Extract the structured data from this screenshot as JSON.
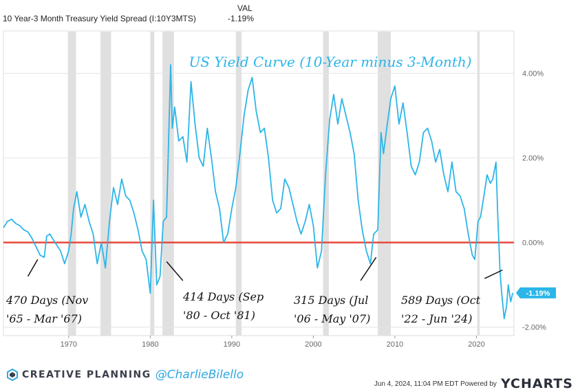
{
  "header": {
    "series_name": "10 Year-3 Month Treasury Yield Spread (I:10Y3MTS)",
    "val_label": "VAL",
    "val": "-1.19%"
  },
  "footer": {
    "brand": "CREATIVE PLANNING",
    "handle": "@CharlieBilello",
    "timestamp": "Jun 4, 2024, 11:04 PM EDT Powered by",
    "ycharts": "YCHARTS"
  },
  "colors": {
    "line": "#2cb5e8",
    "zero_line": "#e8473a",
    "recession": "#e0e0e0",
    "title": "#2cb5e8"
  },
  "chart_data": {
    "type": "line",
    "title": "US Yield Curve (10-Year minus 3-Month)",
    "xlim": [
      1962.0,
      2024.6
    ],
    "ylim": [
      -2.2,
      5.0
    ],
    "x_ticks": [
      1970,
      1980,
      1990,
      2000,
      2010,
      2020
    ],
    "x_tick_labels": [
      "1970",
      "1980",
      "1990",
      "2000",
      "2010",
      "2020"
    ],
    "y_ticks": [
      4,
      2,
      0,
      -2
    ],
    "y_tick_labels": [
      "4.00%",
      "2.00%",
      "0.00%",
      "-2.00%"
    ],
    "current_value": -1.19,
    "current_label": "-1.19%",
    "recessions": [
      [
        1969.9,
        1970.9
      ],
      [
        1973.9,
        1975.2
      ],
      [
        1980.0,
        1980.5
      ],
      [
        1981.5,
        1982.9
      ],
      [
        1990.5,
        1991.2
      ],
      [
        2001.2,
        2001.9
      ],
      [
        2007.9,
        2009.5
      ],
      [
        2020.1,
        2020.4
      ]
    ],
    "series": [
      {
        "values": [
          [
            1962.0,
            0.35
          ],
          [
            1962.5,
            0.5
          ],
          [
            1963.0,
            0.55
          ],
          [
            1963.5,
            0.45
          ],
          [
            1964.0,
            0.4
          ],
          [
            1964.5,
            0.3
          ],
          [
            1965.0,
            0.25
          ],
          [
            1965.5,
            0.1
          ],
          [
            1966.0,
            -0.1
          ],
          [
            1966.5,
            -0.3
          ],
          [
            1967.0,
            -0.35
          ],
          [
            1967.3,
            0.15
          ],
          [
            1967.7,
            0.2
          ],
          [
            1968.0,
            0.1
          ],
          [
            1968.5,
            -0.05
          ],
          [
            1969.0,
            -0.2
          ],
          [
            1969.5,
            -0.5
          ],
          [
            1970.0,
            -0.2
          ],
          [
            1970.3,
            0.2
          ],
          [
            1970.6,
            0.8
          ],
          [
            1971.0,
            1.2
          ],
          [
            1971.5,
            0.6
          ],
          [
            1972.0,
            0.9
          ],
          [
            1972.5,
            0.5
          ],
          [
            1973.0,
            0.2
          ],
          [
            1973.5,
            -0.5
          ],
          [
            1974.0,
            0.0
          ],
          [
            1974.5,
            -0.6
          ],
          [
            1975.0,
            0.5
          ],
          [
            1975.5,
            1.3
          ],
          [
            1976.0,
            0.9
          ],
          [
            1976.5,
            1.5
          ],
          [
            1977.0,
            1.1
          ],
          [
            1977.5,
            1.0
          ],
          [
            1978.0,
            0.7
          ],
          [
            1978.5,
            0.3
          ],
          [
            1979.0,
            -0.2
          ],
          [
            1979.5,
            -0.4
          ],
          [
            1980.0,
            -1.2
          ],
          [
            1980.4,
            1.0
          ],
          [
            1980.8,
            -1.0
          ],
          [
            1981.2,
            -0.8
          ],
          [
            1981.6,
            0.5
          ],
          [
            1982.0,
            0.6
          ],
          [
            1982.5,
            4.2
          ],
          [
            1982.7,
            2.7
          ],
          [
            1983.0,
            3.2
          ],
          [
            1983.5,
            2.4
          ],
          [
            1984.0,
            2.5
          ],
          [
            1984.5,
            1.9
          ],
          [
            1985.0,
            3.8
          ],
          [
            1985.5,
            2.8
          ],
          [
            1986.0,
            2.0
          ],
          [
            1986.5,
            1.8
          ],
          [
            1987.0,
            2.7
          ],
          [
            1987.5,
            2.0
          ],
          [
            1988.0,
            1.2
          ],
          [
            1988.5,
            0.8
          ],
          [
            1989.0,
            0.0
          ],
          [
            1989.5,
            0.2
          ],
          [
            1990.0,
            0.8
          ],
          [
            1990.5,
            1.3
          ],
          [
            1991.0,
            2.1
          ],
          [
            1991.5,
            3.0
          ],
          [
            1992.0,
            3.6
          ],
          [
            1992.5,
            3.9
          ],
          [
            1993.0,
            3.1
          ],
          [
            1993.5,
            2.6
          ],
          [
            1994.0,
            2.7
          ],
          [
            1994.5,
            2.0
          ],
          [
            1995.0,
            1.0
          ],
          [
            1995.5,
            0.7
          ],
          [
            1996.0,
            0.8
          ],
          [
            1996.5,
            1.5
          ],
          [
            1997.0,
            1.3
          ],
          [
            1997.5,
            0.9
          ],
          [
            1998.0,
            0.5
          ],
          [
            1998.5,
            0.2
          ],
          [
            1999.0,
            0.5
          ],
          [
            1999.5,
            0.9
          ],
          [
            2000.0,
            0.4
          ],
          [
            2000.5,
            -0.6
          ],
          [
            2001.0,
            -0.2
          ],
          [
            2001.5,
            1.6
          ],
          [
            2002.0,
            2.9
          ],
          [
            2002.5,
            3.5
          ],
          [
            2003.0,
            2.8
          ],
          [
            2003.5,
            3.4
          ],
          [
            2004.0,
            3.0
          ],
          [
            2004.5,
            2.6
          ],
          [
            2005.0,
            2.1
          ],
          [
            2005.5,
            1.0
          ],
          [
            2006.0,
            0.3
          ],
          [
            2006.5,
            -0.2
          ],
          [
            2007.0,
            -0.5
          ],
          [
            2007.4,
            0.2
          ],
          [
            2007.9,
            0.3
          ],
          [
            2008.3,
            2.6
          ],
          [
            2008.6,
            2.1
          ],
          [
            2009.0,
            2.7
          ],
          [
            2009.5,
            3.4
          ],
          [
            2010.0,
            3.7
          ],
          [
            2010.5,
            2.8
          ],
          [
            2011.0,
            3.3
          ],
          [
            2011.5,
            2.6
          ],
          [
            2012.0,
            1.8
          ],
          [
            2012.5,
            1.6
          ],
          [
            2013.0,
            1.9
          ],
          [
            2013.5,
            2.6
          ],
          [
            2014.0,
            2.7
          ],
          [
            2014.5,
            2.4
          ],
          [
            2015.0,
            1.9
          ],
          [
            2015.5,
            2.2
          ],
          [
            2016.0,
            1.6
          ],
          [
            2016.5,
            1.2
          ],
          [
            2017.0,
            1.9
          ],
          [
            2017.5,
            1.2
          ],
          [
            2018.0,
            1.1
          ],
          [
            2018.5,
            0.8
          ],
          [
            2019.0,
            0.2
          ],
          [
            2019.5,
            -0.3
          ],
          [
            2019.8,
            -0.4
          ],
          [
            2020.2,
            0.5
          ],
          [
            2020.5,
            0.6
          ],
          [
            2021.0,
            1.2
          ],
          [
            2021.3,
            1.6
          ],
          [
            2021.7,
            1.4
          ],
          [
            2022.0,
            1.5
          ],
          [
            2022.4,
            1.9
          ],
          [
            2022.6,
            0.7
          ],
          [
            2022.9,
            -0.7
          ],
          [
            2023.1,
            -1.2
          ],
          [
            2023.4,
            -1.8
          ],
          [
            2023.7,
            -1.5
          ],
          [
            2023.9,
            -1.0
          ],
          [
            2024.2,
            -1.4
          ],
          [
            2024.45,
            -1.19
          ]
        ]
      }
    ],
    "annotations": [
      {
        "line1": "470 Days (Nov",
        "line2": "'65 - Mar '67)",
        "arrow_from": [
          1965.0,
          -0.8
        ],
        "arrow_to": [
          1966.2,
          -0.4
        ]
      },
      {
        "line1": "414 Days (Sep",
        "line2": "'80 - Oct '81)",
        "arrow_from": [
          1984.0,
          -0.9
        ],
        "arrow_to": [
          1982.0,
          -0.45
        ]
      },
      {
        "line1": "315 Days (Jul",
        "line2": "'06 - May '07)",
        "arrow_from": [
          2005.8,
          -0.9
        ],
        "arrow_to": [
          2007.7,
          -0.35
        ]
      },
      {
        "line1": "589 Days (Oct",
        "line2": "'22 - Jun '24)",
        "arrow_from": [
          2021.0,
          -0.85
        ],
        "arrow_to": [
          2023.2,
          -0.65
        ]
      }
    ]
  }
}
